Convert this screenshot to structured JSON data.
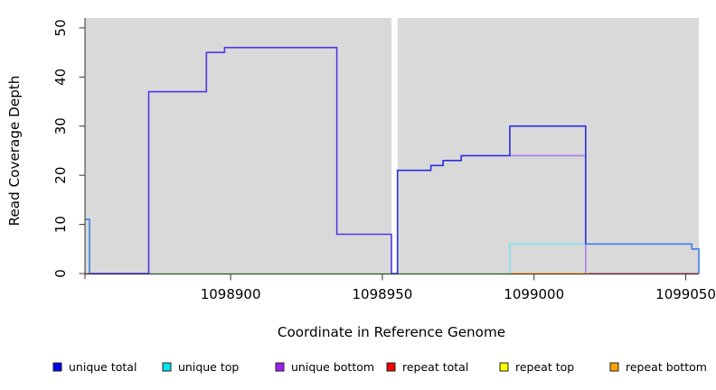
{
  "chart_data": {
    "type": "line",
    "subtype": "step-coverage-plot",
    "title": "",
    "xlabel": "Coordinate in Reference Genome",
    "ylabel": "Read Coverage Depth",
    "xlim": [
      1098852,
      1099054.3
    ],
    "ylim": [
      0,
      50
    ],
    "grid": false,
    "panel_bg": "#d9d9d9",
    "axis_color": "#333333",
    "xticks": [
      {
        "value": 1098900,
        "label": "1098900"
      },
      {
        "value": 1098950,
        "label": "1098950"
      },
      {
        "value": 1099000,
        "label": "1099000"
      },
      {
        "value": 1099050,
        "label": "1099050"
      }
    ],
    "yticks": [
      {
        "value": 0,
        "label": "0"
      },
      {
        "value": 10,
        "label": "10"
      },
      {
        "value": 20,
        "label": "20"
      },
      {
        "value": 30,
        "label": "30"
      },
      {
        "value": 40,
        "label": "40"
      },
      {
        "value": 50,
        "label": "50"
      }
    ],
    "gap_band": {
      "from": 1098953,
      "to": 1098955,
      "color": "#ffffff"
    },
    "legend": {
      "position": "bottom",
      "items": [
        {
          "label": "unique total",
          "color": "#0000EE"
        },
        {
          "label": "unique top",
          "color": "#00E5EE"
        },
        {
          "label": "unique bottom",
          "color": "#A020F0"
        },
        {
          "label": "repeat total",
          "color": "#EE0000"
        },
        {
          "label": "repeat top",
          "color": "#FFFF00"
        },
        {
          "label": "repeat bottom",
          "color": "#FFA500"
        }
      ]
    },
    "series": [
      {
        "name": "repeat-total-zero-left",
        "legend": "repeat total",
        "color": "#ff6d5e",
        "points": [
          [
            1098852,
            0
          ],
          [
            1098855,
            0
          ]
        ]
      },
      {
        "name": "unique-bottom-zero-left",
        "legend": "unique bottom",
        "color": "#cbbaf0",
        "points": [
          [
            1098855,
            0
          ],
          [
            1098873,
            0
          ]
        ]
      },
      {
        "name": "overlap-zero-green",
        "legend": "unique top / repeat top overlap",
        "color": "#8fd795",
        "points": [
          [
            1098873,
            0
          ],
          [
            1098992,
            0
          ]
        ]
      },
      {
        "name": "repeat-bottom-zero",
        "legend": "repeat bottom",
        "color": "#ff9b1f",
        "points": [
          [
            1098992,
            0
          ],
          [
            1099018,
            0
          ]
        ]
      },
      {
        "name": "repeat-total-zero-right",
        "legend": "repeat total",
        "color": "#d05577",
        "points": [
          [
            1099018,
            0
          ],
          [
            1099054.3,
            0
          ]
        ]
      },
      {
        "name": "unique-top",
        "legend": "unique top",
        "color": "#7fe4ef",
        "points": [
          [
            1098992,
            0
          ],
          [
            1098992,
            6
          ],
          [
            1099017,
            6
          ]
        ]
      },
      {
        "name": "unique-bottom",
        "legend": "unique bottom",
        "color": "#b07de8",
        "points": [
          [
            1098992,
            24
          ],
          [
            1099017,
            24
          ],
          [
            1099017,
            0
          ]
        ]
      },
      {
        "name": "unique-total-left-cap",
        "legend": "unique total",
        "color": "#3f7ee6",
        "points": [
          [
            1098852,
            11
          ],
          [
            1098853.5,
            11
          ],
          [
            1098853.5,
            0
          ]
        ]
      },
      {
        "name": "unique-total-left",
        "legend": "unique total",
        "color": "#5036e8",
        "points": [
          [
            1098853.5,
            0
          ],
          [
            1098873,
            0
          ],
          [
            1098873,
            37
          ],
          [
            1098892,
            37
          ],
          [
            1098892,
            45
          ],
          [
            1098898,
            45
          ],
          [
            1098898,
            46
          ],
          [
            1098935,
            46
          ],
          [
            1098935,
            8
          ],
          [
            1098953,
            8
          ],
          [
            1098953,
            0
          ],
          [
            1098955,
            0
          ]
        ]
      },
      {
        "name": "unique-total-right",
        "legend": "unique total",
        "color": "#2b2de2",
        "points": [
          [
            1098955,
            0
          ],
          [
            1098955,
            21
          ],
          [
            1098966,
            21
          ],
          [
            1098966,
            22
          ],
          [
            1098970,
            22
          ],
          [
            1098970,
            23
          ],
          [
            1098976,
            23
          ],
          [
            1098976,
            24
          ],
          [
            1098992,
            24
          ],
          [
            1098992,
            30
          ],
          [
            1099017,
            30
          ],
          [
            1099017,
            6
          ]
        ]
      },
      {
        "name": "unique-total-right-end",
        "legend": "unique total",
        "color": "#3f7ee6",
        "points": [
          [
            1099017,
            6
          ],
          [
            1099052,
            6
          ],
          [
            1099052,
            5
          ],
          [
            1099054.3,
            5
          ],
          [
            1099054.3,
            0
          ]
        ]
      }
    ]
  }
}
